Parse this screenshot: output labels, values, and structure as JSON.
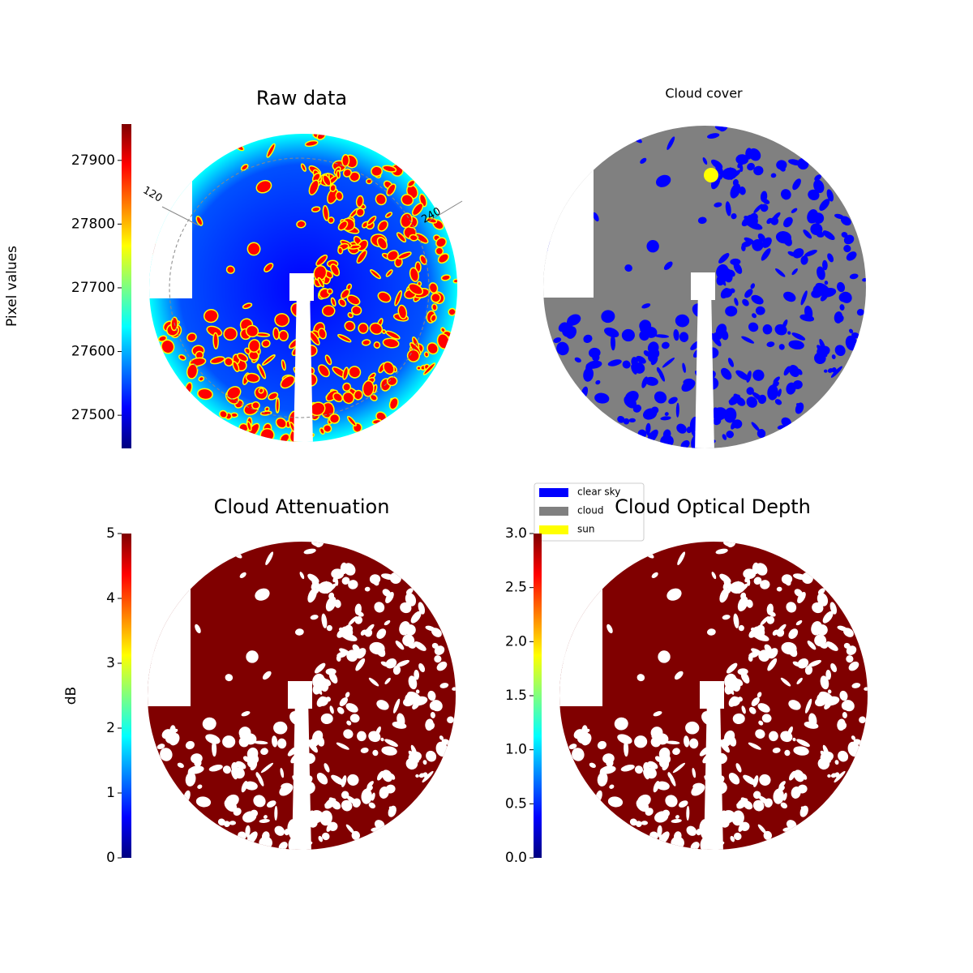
{
  "chart_data": [
    {
      "type": "image",
      "title": "Raw data",
      "colorbar": {
        "label": "Pixel values",
        "colormap": "jet",
        "ylim": [
          27448,
          27957
        ],
        "yticks": [
          27500,
          27600,
          27700,
          27800,
          27900
        ]
      },
      "annotations": [
        "120",
        "240"
      ]
    },
    {
      "type": "image",
      "title": "Cloud cover",
      "series": [
        {
          "name": "clear sky",
          "color": "#0000ff"
        },
        {
          "name": "cloud",
          "color": "#808080"
        },
        {
          "name": "sun",
          "color": "#ffff00"
        }
      ]
    },
    {
      "type": "image",
      "title": "Cloud Attenuation",
      "color": "#800000",
      "colorbar": {
        "label": "dB",
        "colormap": "jet",
        "ylim": [
          0,
          5
        ],
        "yticks": [
          0,
          1,
          2,
          3,
          4,
          5
        ]
      }
    },
    {
      "type": "image",
      "title": "Cloud Optical Depth",
      "color": "#800000",
      "colorbar": {
        "colormap": "jet",
        "ylim": [
          0,
          3
        ],
        "yticks": [
          {
            "value": 0,
            "label": "0.0"
          },
          {
            "value": 0.5,
            "label": "0.5"
          },
          {
            "value": 1,
            "label": "1.0"
          },
          {
            "value": 1.5,
            "label": "1.5"
          },
          {
            "value": 2,
            "label": "2.0"
          },
          {
            "value": 2.5,
            "label": "2.5"
          },
          {
            "value": 3,
            "label": "3.0"
          }
        ]
      }
    }
  ]
}
